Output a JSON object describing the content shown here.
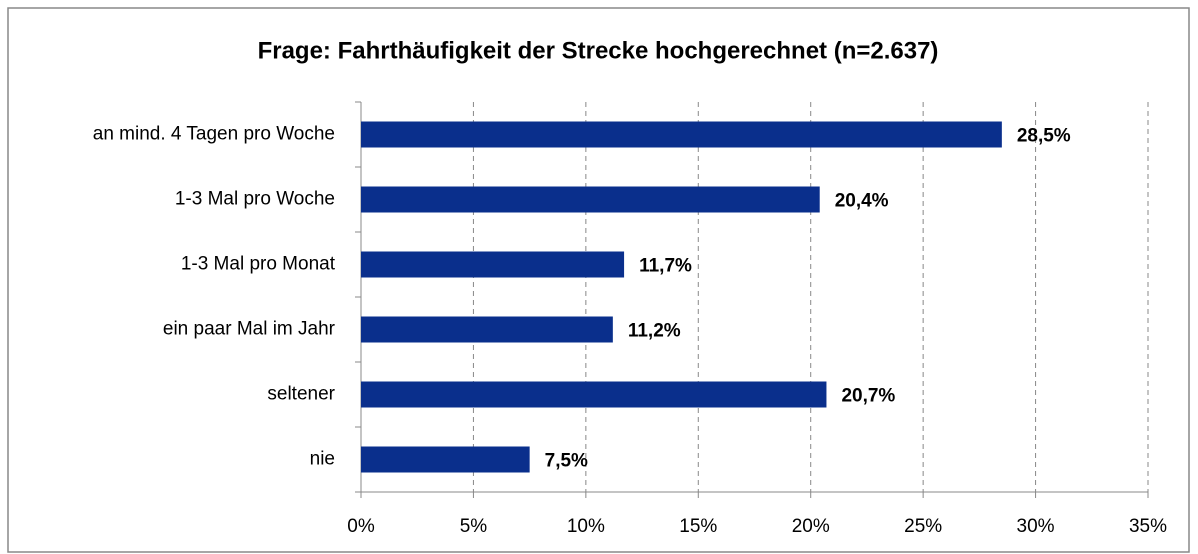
{
  "chart_data": {
    "type": "bar",
    "orientation": "horizontal",
    "title": "Frage: Fahrthäufigkeit der Strecke hochgerechnet (n=2.637)",
    "categories": [
      "an mind. 4 Tagen pro Woche",
      "1-3 Mal pro Woche",
      "1-3 Mal pro Monat",
      "ein paar Mal im Jahr",
      "seltener",
      "nie"
    ],
    "values": [
      28.5,
      20.4,
      11.7,
      11.2,
      20.7,
      7.5
    ],
    "value_labels": [
      "28,5%",
      "20,4%",
      "11,7%",
      "11,2%",
      "20,7%",
      "7,5%"
    ],
    "color": "#0a2f8c",
    "xlim": [
      0,
      35
    ],
    "xticks": [
      {
        "value": 0,
        "label": "0%"
      },
      {
        "value": 5,
        "label": "5%"
      },
      {
        "value": 10,
        "label": "10%"
      },
      {
        "value": 15,
        "label": "15%"
      },
      {
        "value": 20,
        "label": "20%"
      },
      {
        "value": 25,
        "label": "25%"
      },
      {
        "value": 30,
        "label": "30%"
      },
      {
        "value": 35,
        "label": "35%"
      }
    ],
    "grid": true
  }
}
